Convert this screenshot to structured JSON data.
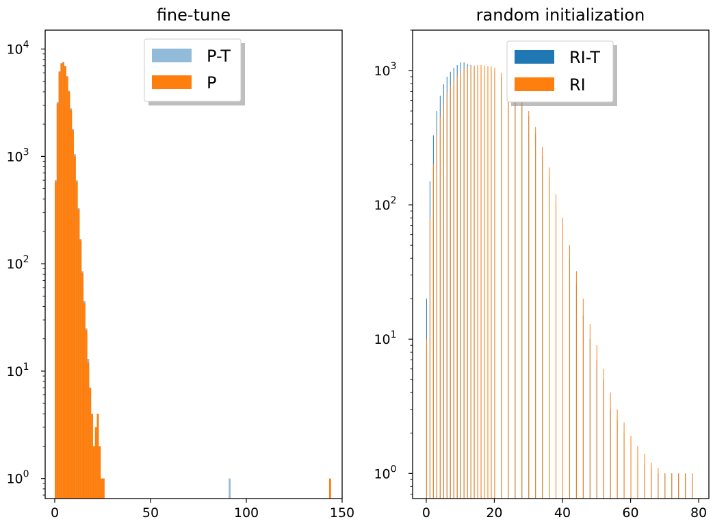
{
  "chart_data": [
    {
      "type": "histogram",
      "title": "fine-tune",
      "xlabel": "",
      "ylabel": "",
      "yscale": "log",
      "xlim": [
        -5,
        150
      ],
      "ylim": [
        0.65,
        15000
      ],
      "xticks": [
        0,
        50,
        100,
        150
      ],
      "yticks": [
        {
          "value": 1,
          "base": "10",
          "exp": "0"
        },
        {
          "value": 10,
          "base": "10",
          "exp": "1"
        },
        {
          "value": 100,
          "base": "10",
          "exp": "2"
        },
        {
          "value": 1000,
          "base": "10",
          "exp": "3"
        },
        {
          "value": 10000,
          "base": "10",
          "exp": "4"
        }
      ],
      "legend": {
        "position": "upper-center"
      },
      "series": [
        {
          "name": "P-T",
          "color": "#92bbd9",
          "x": [
            0,
            1,
            2,
            3,
            4,
            5,
            6,
            7,
            8,
            9,
            10,
            11,
            12,
            13,
            14,
            15,
            16,
            17,
            18,
            19,
            20,
            21,
            22,
            23,
            24,
            25,
            90.8
          ],
          "counts": [
            600,
            3200,
            6200,
            7400,
            7600,
            7000,
            5600,
            4100,
            2800,
            1800,
            1050,
            600,
            330,
            170,
            85,
            45,
            25,
            13,
            7,
            4,
            2,
            3,
            4,
            2,
            1,
            1,
            1
          ],
          "bin_width": 1
        },
        {
          "name": "P",
          "color": "#ff7f0e",
          "x": [
            0,
            1,
            2,
            3,
            4,
            5,
            6,
            7,
            8,
            9,
            10,
            11,
            12,
            13,
            14,
            15,
            16,
            17,
            18,
            19,
            20,
            21,
            22,
            23,
            24,
            25,
            143.2
          ],
          "counts": [
            580,
            3100,
            6100,
            7300,
            7500,
            6900,
            5500,
            4000,
            2700,
            1750,
            1000,
            580,
            320,
            165,
            82,
            43,
            24,
            12,
            7,
            4,
            2,
            3,
            4,
            2,
            1,
            1,
            1
          ],
          "bin_width": 1
        }
      ]
    },
    {
      "type": "histogram",
      "title": "random initialization",
      "xlabel": "",
      "ylabel": "",
      "yscale": "log",
      "xlim": [
        -4,
        83
      ],
      "ylim": [
        0.65,
        2000
      ],
      "xticks": [
        0,
        20,
        40,
        60,
        80
      ],
      "yticks": [
        {
          "value": 1,
          "base": "10",
          "exp": "0"
        },
        {
          "value": 10,
          "base": "10",
          "exp": "1"
        },
        {
          "value": 100,
          "base": "10",
          "exp": "2"
        },
        {
          "value": 1000,
          "base": "10",
          "exp": "3"
        }
      ],
      "legend": {
        "position": "upper-center"
      },
      "series": [
        {
          "name": "RI-T",
          "color": "#1f77b4",
          "x": [
            0,
            1,
            2,
            3,
            4,
            5,
            6,
            7,
            8,
            9,
            10,
            11,
            12,
            13,
            14,
            15,
            16,
            17,
            18,
            19,
            20,
            22,
            24,
            26,
            28,
            30,
            32,
            34,
            36,
            38,
            40,
            42,
            44,
            46,
            48,
            50,
            52,
            54,
            56,
            58,
            60,
            62,
            64,
            66,
            68,
            70,
            72,
            74,
            76,
            78
          ],
          "counts": [
            20,
            150,
            330,
            500,
            650,
            790,
            900,
            980,
            1050,
            1100,
            1150,
            1150,
            1120,
            1100,
            1080,
            1060,
            1050,
            1040,
            1020,
            1000,
            980,
            900,
            800,
            700,
            580,
            460,
            340,
            230,
            160,
            100,
            65,
            40,
            26,
            15,
            10,
            7,
            5,
            3,
            2.5,
            2,
            1.6,
            1.3,
            1.2,
            1.1,
            1,
            1,
            1,
            1,
            1,
            1
          ],
          "bin_width": 0.2
        },
        {
          "name": "RI",
          "color": "#ff7f0e",
          "x": [
            0,
            1,
            2,
            3,
            4,
            5,
            6,
            7,
            8,
            9,
            10,
            11,
            12,
            13,
            14,
            15,
            16,
            17,
            18,
            19,
            20,
            22,
            24,
            26,
            28,
            30,
            32,
            34,
            36,
            38,
            40,
            42,
            44,
            46,
            48,
            50,
            52,
            54,
            56,
            58,
            60,
            62,
            64,
            66,
            68,
            70,
            72,
            74,
            76,
            78
          ],
          "counts": [
            10,
            80,
            200,
            330,
            450,
            570,
            680,
            770,
            850,
            920,
            980,
            1030,
            1060,
            1080,
            1090,
            1100,
            1100,
            1090,
            1080,
            1070,
            1050,
            960,
            860,
            740,
            620,
            500,
            380,
            270,
            190,
            120,
            80,
            50,
            32,
            20,
            13,
            9,
            6,
            4,
            3,
            2.4,
            1.9,
            1.6,
            1.4,
            1.2,
            1.1,
            1,
            1,
            1,
            1,
            1
          ],
          "bin_width": 0.2
        }
      ]
    }
  ]
}
